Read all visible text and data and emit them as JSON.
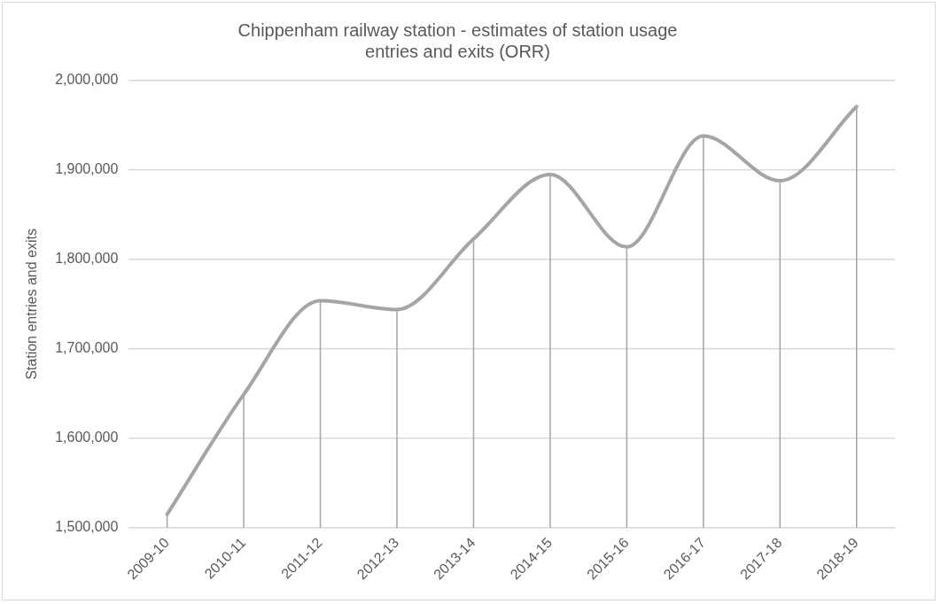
{
  "chart_data": {
    "type": "line",
    "title": "Chippenham railway station - estimates of station usage entries and exits (ORR)",
    "ylabel": "Station entries and exits",
    "categories": [
      "2009-10",
      "2010-11",
      "2011-12",
      "2012-13",
      "2013-14",
      "2014-15",
      "2015-16",
      "2016-17",
      "2017-18",
      "2018-19"
    ],
    "series": [
      {
        "color": "#a5a5a5",
        "values": [
          1515000,
          1649000,
          1754000,
          1744000,
          1823000,
          1895000,
          1814000,
          1938000,
          1888000,
          1971000
        ],
        "errors": [
          [
            1500000,
            1515000
          ],
          [
            1500000,
            1649000
          ],
          [
            1500000,
            1754000
          ],
          [
            1500000,
            1744000
          ],
          [
            1500000,
            1823000
          ],
          [
            1500000,
            1895000
          ],
          [
            1500000,
            1814000
          ],
          [
            1500000,
            1938000
          ],
          [
            1500000,
            1888000
          ],
          [
            1500000,
            1971000
          ]
        ]
      }
    ],
    "ylim": [
      1500000,
      2000000
    ],
    "yticks": [
      {
        "value": 1500000,
        "label": "1,500,000"
      },
      {
        "value": 1600000,
        "label": "1,600,000"
      },
      {
        "value": 1700000,
        "label": "1,700,000"
      },
      {
        "value": 1800000,
        "label": "1,800,000"
      },
      {
        "value": 1900000,
        "label": "1,900,000"
      },
      {
        "value": 2000000,
        "label": "2,000,000"
      }
    ],
    "grid": "y",
    "legend": false,
    "marker": "none",
    "line_style": "solid"
  }
}
